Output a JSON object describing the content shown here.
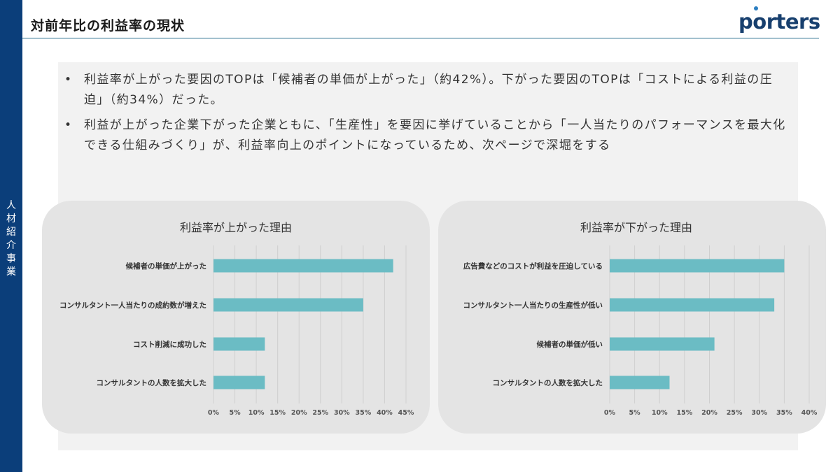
{
  "sidebar": {
    "label": "人\n材\n紹\n介\n事\n業"
  },
  "header": {
    "title": "対前年比の利益率の現状",
    "logo_text": "porters"
  },
  "bullets": [
    "利益率が上がった要因のTOPは「候補者の単価が上がった」（約42%）。下がった要因のTOPは「コストによる利益の圧迫」（約34%）だった。",
    "利益が上がった企業下がった企業ともに、「生産性」を要因に挙げていることから「一人当たりのパフォーマンスを最大化できる仕組みづくり」が、利益率向上のポイントになっているため、次ページで深堀をする"
  ],
  "colors": {
    "bar": "#6bbcc4",
    "card": "#e4e4e4",
    "sidebar": "#0b3e7a"
  },
  "chart_data": [
    {
      "type": "bar",
      "orientation": "horizontal",
      "title": "利益率が上がった理由",
      "categories": [
        "候補者の単価が上がった",
        "コンサルタント一人当たりの成約数が増えた",
        "コスト削減に成功した",
        "コンサルタントの人数を拡大した"
      ],
      "values": [
        42,
        35,
        12,
        12
      ],
      "xlim": [
        0,
        45
      ],
      "xticks": [
        "0%",
        "5%",
        "10%",
        "15%",
        "20%",
        "25%",
        "30%",
        "35%",
        "40%",
        "45%"
      ],
      "grid": true
    },
    {
      "type": "bar",
      "orientation": "horizontal",
      "title": "利益率が下がった理由",
      "categories": [
        "広告費などのコストが利益を圧迫している",
        "コンサルタント一人当たりの生産性が低い",
        "候補者の単価が低い",
        "コンサルタントの人数を拡大した"
      ],
      "values": [
        35,
        33,
        21,
        12
      ],
      "xlim": [
        0,
        40
      ],
      "xticks": [
        "0%",
        "5%",
        "10%",
        "15%",
        "20%",
        "25%",
        "30%",
        "35%",
        "40%"
      ],
      "grid": true
    }
  ]
}
